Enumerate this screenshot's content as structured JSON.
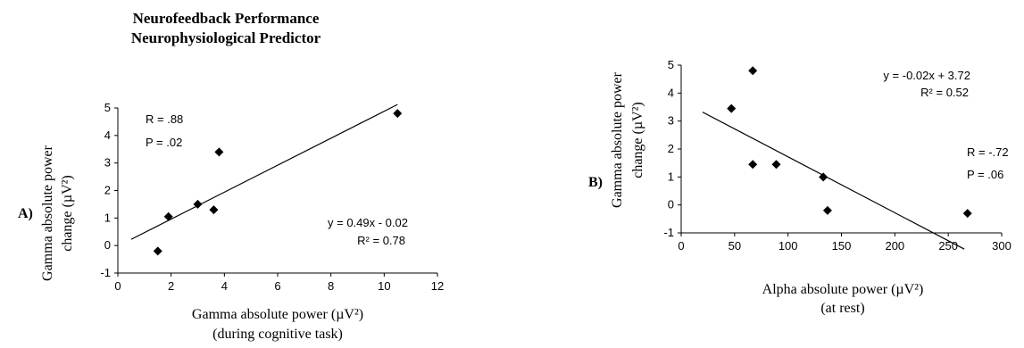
{
  "figure": {
    "title_line1": "Neurofeedback Performance",
    "title_line2": "Neurophysiological Predictor"
  },
  "chart_data": [
    {
      "type": "scatter",
      "panel_label": "A)",
      "xlabel_line1": "Gamma absolute power (µV²)",
      "xlabel_line2": "(during cognitive task)",
      "ylabel_line1": "Gamma absolute power",
      "ylabel_line2": "change (µV²)",
      "xlim": [
        0,
        12
      ],
      "ylim": [
        -1,
        5
      ],
      "x_ticks": [
        0,
        2,
        4,
        6,
        8,
        10,
        12
      ],
      "y_ticks": [
        -1,
        0,
        1,
        2,
        3,
        4,
        5
      ],
      "points": [
        {
          "x": 1.5,
          "y": -0.2
        },
        {
          "x": 1.9,
          "y": 1.05
        },
        {
          "x": 3.0,
          "y": 1.5
        },
        {
          "x": 3.6,
          "y": 1.3
        },
        {
          "x": 3.8,
          "y": 3.4
        },
        {
          "x": 10.5,
          "y": 4.8
        }
      ],
      "trendline": {
        "slope": 0.49,
        "intercept": -0.02,
        "x_range": [
          0.5,
          10.5
        ]
      },
      "equation": "y = 0.49x - 0.02",
      "r_squared": "R² = 0.78",
      "r_text": "R = .88",
      "p_text": "P = .02",
      "marker_color": "#000000"
    },
    {
      "type": "scatter",
      "panel_label": "B)",
      "xlabel_line1": "Alpha absolute power (µV²)",
      "xlabel_line2": "(at rest)",
      "ylabel_line1": "Gamma absolute power",
      "ylabel_line2": "change (µV²)",
      "xlim": [
        0,
        300
      ],
      "ylim": [
        -1,
        5
      ],
      "x_ticks": [
        0,
        50,
        100,
        150,
        200,
        250,
        300
      ],
      "y_ticks": [
        -1,
        0,
        1,
        2,
        3,
        4,
        5
      ],
      "points": [
        {
          "x": 47,
          "y": 3.45
        },
        {
          "x": 67,
          "y": 4.8
        },
        {
          "x": 67,
          "y": 1.45
        },
        {
          "x": 89,
          "y": 1.45
        },
        {
          "x": 133,
          "y": 1.0
        },
        {
          "x": 137,
          "y": -0.2
        },
        {
          "x": 268,
          "y": -0.3
        }
      ],
      "trendline": {
        "slope": -0.02,
        "intercept": 3.72,
        "x_range": [
          20,
          265
        ]
      },
      "equation": "y = -0.02x + 3.72",
      "r_squared": "R² = 0.52",
      "r_text": "R = -.72",
      "p_text": "P = .06",
      "marker_color": "#000000"
    }
  ]
}
